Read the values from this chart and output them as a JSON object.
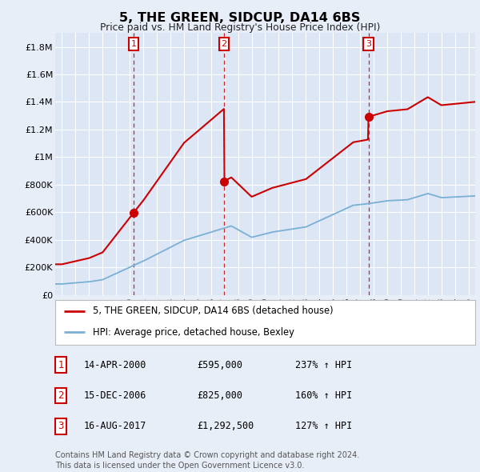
{
  "title": "5, THE GREEN, SIDCUP, DA14 6BS",
  "subtitle": "Price paid vs. HM Land Registry's House Price Index (HPI)",
  "background_color": "#e8eef8",
  "plot_bg_color": "#dde6f5",
  "ylim": [
    0,
    1900000
  ],
  "yticks": [
    0,
    200000,
    400000,
    600000,
    800000,
    1000000,
    1200000,
    1400000,
    1600000,
    1800000
  ],
  "ytick_labels": [
    "£0",
    "£200K",
    "£400K",
    "£600K",
    "£800K",
    "£1M",
    "£1.2M",
    "£1.4M",
    "£1.6M",
    "£1.8M"
  ],
  "sale_dates_num": [
    2000.29,
    2006.96,
    2017.62
  ],
  "sale_prices_val": [
    595000,
    825000,
    1292500
  ],
  "sale_labels": [
    "1",
    "2",
    "3"
  ],
  "sale_dates": [
    "14-APR-2000",
    "15-DEC-2006",
    "16-AUG-2017"
  ],
  "sale_prices_text": [
    "£595,000",
    "£825,000",
    "£1,292,500"
  ],
  "sale_hpi": [
    "237% ↑ HPI",
    "160% ↑ HPI",
    "127% ↑ HPI"
  ],
  "legend_line1": "5, THE GREEN, SIDCUP, DA14 6BS (detached house)",
  "legend_line2": "HPI: Average price, detached house, Bexley",
  "footer": "Contains HM Land Registry data © Crown copyright and database right 2024.\nThis data is licensed under the Open Government Licence v3.0.",
  "red_color": "#cc0000",
  "blue_color": "#7ab0d4",
  "xlim_left": 1994.5,
  "xlim_right": 2025.5,
  "xtick_start": 1995,
  "xtick_end": 2025
}
